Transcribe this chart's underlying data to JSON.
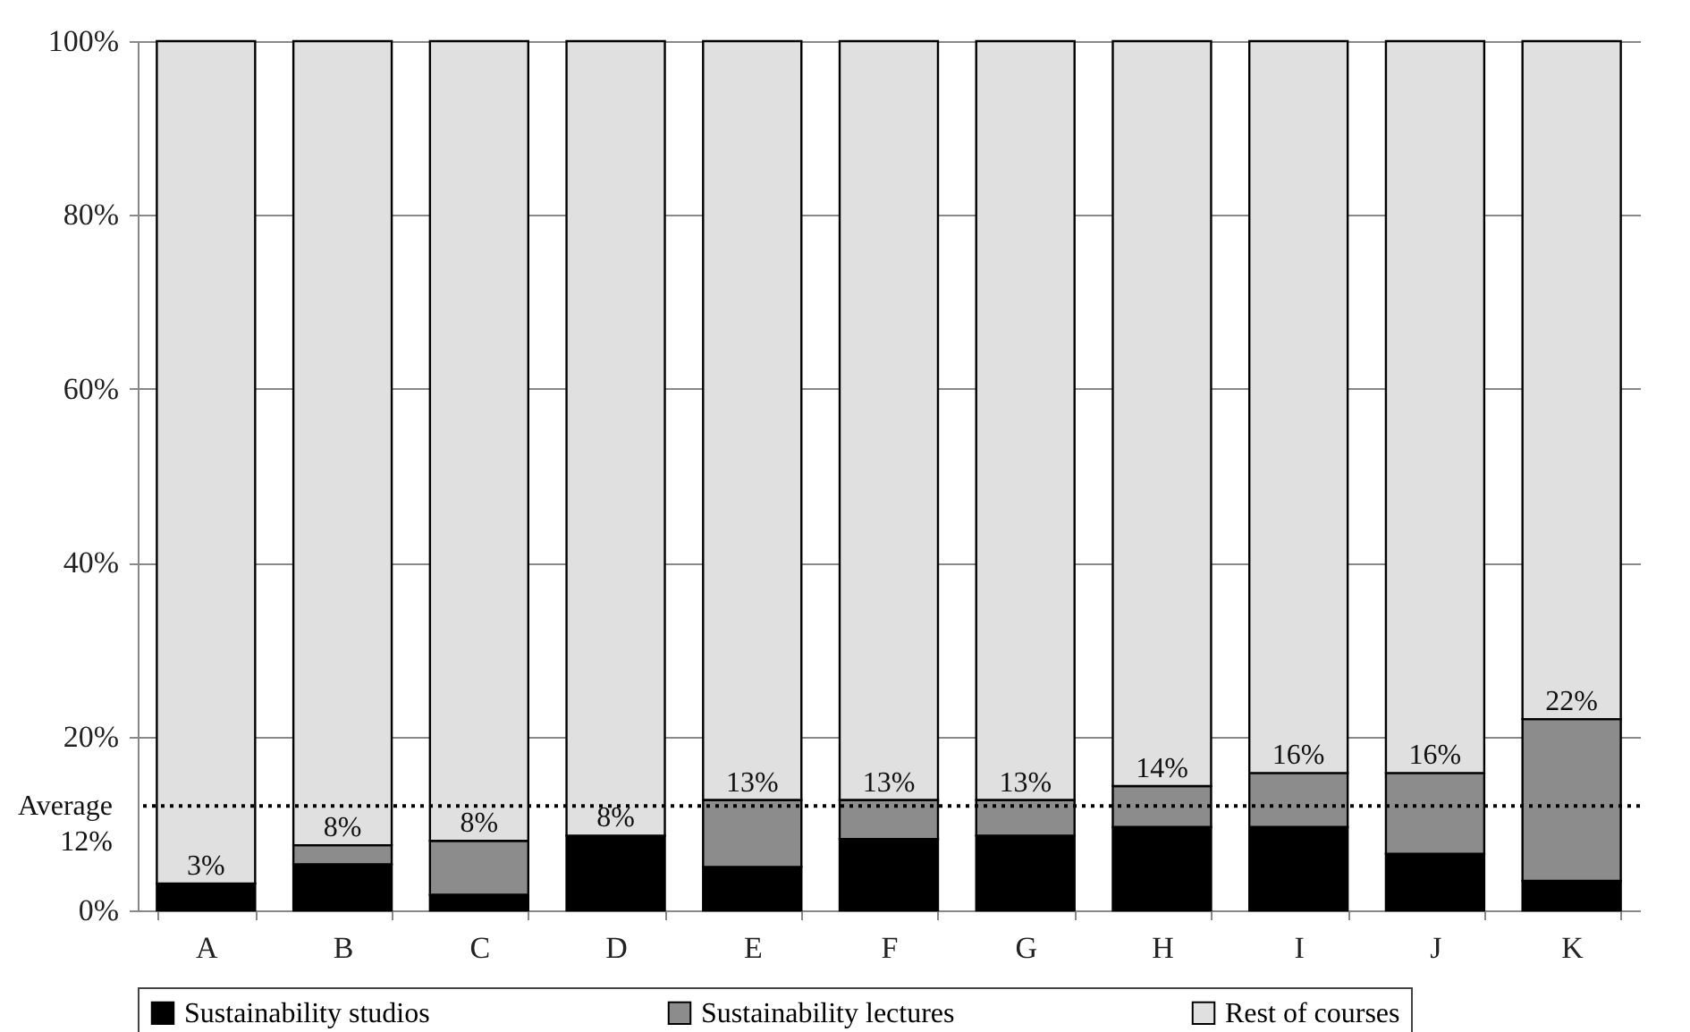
{
  "chart_data": {
    "type": "bar",
    "stacked": true,
    "categories": [
      "A",
      "B",
      "C",
      "D",
      "E",
      "F",
      "G",
      "H",
      "I",
      "J",
      "K"
    ],
    "series": [
      {
        "name": "Sustainability studios",
        "color": "#000000",
        "values": [
          3.1,
          5.3,
          1.8,
          8.6,
          5.0,
          8.2,
          8.6,
          9.6,
          9.6,
          6.5,
          3.4
        ]
      },
      {
        "name": "Sustainability lectures",
        "color": "#8c8c8c",
        "values": [
          0,
          2.2,
          6.2,
          0,
          7.7,
          4.5,
          4.1,
          4.7,
          6.2,
          9.3,
          18.6
        ]
      },
      {
        "name": "Rest of courses",
        "color": "#e0e0e0",
        "values": [
          96.9,
          92.5,
          92.0,
          91.4,
          87.3,
          87.3,
          87.3,
          85.7,
          84.2,
          84.2,
          78.0
        ]
      }
    ],
    "annotations": [
      {
        "text": "3%",
        "x": "A",
        "y": 3.1
      },
      {
        "text": "8%",
        "x": "B",
        "y": 7.5
      },
      {
        "text": "8%",
        "x": "C",
        "y": 8.0
      },
      {
        "text": "8%",
        "x": "D",
        "y": 8.6
      },
      {
        "text": "13%",
        "x": "E",
        "y": 12.7
      },
      {
        "text": "13%",
        "x": "F",
        "y": 12.7
      },
      {
        "text": "13%",
        "x": "G",
        "y": 12.7
      },
      {
        "text": "14%",
        "x": "H",
        "y": 14.3
      },
      {
        "text": "16%",
        "x": "I",
        "y": 15.8
      },
      {
        "text": "16%",
        "x": "J",
        "y": 15.8
      },
      {
        "text": "22%",
        "x": "K",
        "y": 22.0
      }
    ],
    "ylim": [
      0,
      100
    ],
    "yticks": [
      {
        "value": 0,
        "label": "0%"
      },
      {
        "value": 20,
        "label": "20%"
      },
      {
        "value": 40,
        "label": "40%"
      },
      {
        "value": 60,
        "label": "60%"
      },
      {
        "value": 80,
        "label": "80%"
      },
      {
        "value": 100,
        "label": "100%"
      }
    ],
    "grid": "y",
    "legend": "bottom",
    "ref_lines": [
      {
        "axis": "y",
        "value": 12,
        "label": "Average 12%",
        "line_style": "dotted"
      }
    ]
  }
}
